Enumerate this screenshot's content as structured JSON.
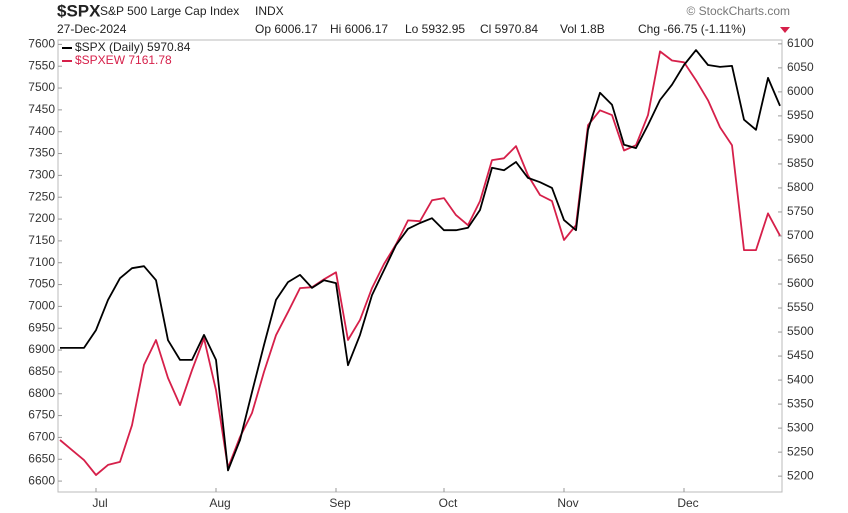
{
  "chart_data": {
    "type": "line",
    "title": "$SPX",
    "subtitle": "S&P 500 Large Cap Index",
    "exchange": "INDX",
    "source": "© StockCharts.com",
    "date": "27-Dec-2024",
    "quote": [
      "Op 6006.17",
      "Hi 6006.17",
      "Lo 5932.95",
      "Cl 5970.84",
      "Vol 1.8B",
      "Chg -66.75 (-1.11%)"
    ],
    "categories": [
      null,
      null,
      null,
      "Jul",
      null,
      null,
      null,
      null,
      null,
      null,
      null,
      null,
      null,
      "Aug",
      null,
      null,
      null,
      null,
      null,
      null,
      null,
      null,
      null,
      "Sep",
      null,
      null,
      null,
      null,
      null,
      null,
      null,
      null,
      "Oct",
      null,
      null,
      null,
      null,
      null,
      null,
      null,
      null,
      null,
      "Nov",
      null,
      null,
      null,
      null,
      null,
      null,
      null,
      null,
      null,
      "Dec",
      null,
      null,
      null,
      null,
      null,
      null,
      null,
      null
    ],
    "series": [
      {
        "name": "$SPX (Daily) 5970.84",
        "color": "#000000",
        "axis": "y2",
        "values": [
          5467,
          5467,
          5467,
          5504,
          5567,
          5612,
          5633,
          5637,
          5608,
          5483,
          5442,
          5442,
          5494,
          5442,
          5212,
          5275,
          5375,
          5473,
          5567,
          5604,
          5619,
          5592,
          5608,
          5602,
          5431,
          5494,
          5577,
          5629,
          5681,
          5715,
          5727,
          5737,
          5712,
          5712,
          5717,
          5754,
          5842,
          5837,
          5854,
          5821,
          5812,
          5800,
          5733,
          5712,
          5921,
          5998,
          5973,
          5890,
          5883,
          5931,
          5983,
          6015,
          6056,
          6087,
          6056,
          6052,
          6054,
          5942,
          5921,
          6029,
          5970.84
        ]
      },
      {
        "name": "$SPXEW 7161.78",
        "color": "#d6204a",
        "values": [
          6694,
          6671,
          6648,
          6614,
          6637,
          6644,
          6728,
          6866,
          6923,
          6836,
          6774,
          6854,
          6927,
          6808,
          6630,
          6701,
          6756,
          6850,
          6934,
          6987,
          7042,
          7044,
          7062,
          7078,
          6923,
          6969,
          7042,
          7097,
          7142,
          7197,
          7195,
          7243,
          7248,
          7209,
          7186,
          7241,
          7335,
          7339,
          7367,
          7300,
          7255,
          7241,
          7152,
          7186,
          7415,
          7449,
          7438,
          7357,
          7369,
          7438,
          7584,
          7563,
          7559,
          7518,
          7472,
          7410,
          7369,
          7129,
          7129,
          7213,
          7161.78
        ]
      }
    ],
    "ylim": [
      6575,
      7610
    ],
    "yticks": [
      6600,
      6650,
      6700,
      6750,
      6800,
      6850,
      6900,
      6950,
      7000,
      7050,
      7100,
      7150,
      7200,
      7250,
      7300,
      7350,
      7400,
      7450,
      7500,
      7550,
      7600
    ],
    "y2lim": [
      5167,
      6108
    ],
    "y2ticks": [
      5200,
      5250,
      5300,
      5350,
      5400,
      5450,
      5500,
      5550,
      5600,
      5650,
      5700,
      5750,
      5800,
      5850,
      5900,
      5950,
      6000,
      6050,
      6100
    ],
    "legend": "top-left",
    "grid": false
  }
}
